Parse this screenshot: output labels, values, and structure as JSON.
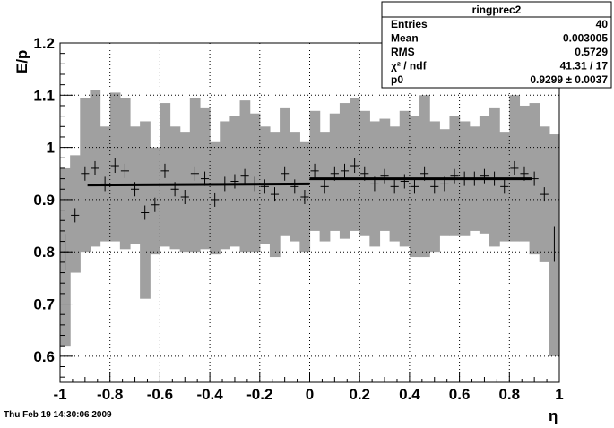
{
  "chart_data": {
    "type": "scatter",
    "title": "",
    "xlabel": "η",
    "ylabel": "E/p",
    "xlim": [
      -1,
      1
    ],
    "ylim": [
      0.55,
      1.2
    ],
    "x_ticks": [
      "-1",
      "-0.8",
      "-0.6",
      "-0.4",
      "-0.2",
      "0",
      "0.2",
      "0.4",
      "0.6",
      "0.8",
      "1"
    ],
    "y_ticks": [
      "0.6",
      "0.7",
      "0.8",
      "0.9",
      "1",
      "1.1",
      "1.2"
    ],
    "grid": true,
    "bin_width": 0.04,
    "points": [
      {
        "x": -0.98,
        "y": 0.8,
        "band_low": 0.62,
        "band_high": 0.96
      },
      {
        "x": -0.94,
        "y": 0.87,
        "band_low": 0.76,
        "band_high": 0.985
      },
      {
        "x": -0.9,
        "y": 0.95,
        "band_low": 0.8,
        "band_high": 1.095
      },
      {
        "x": -0.86,
        "y": 0.96,
        "band_low": 0.81,
        "band_high": 1.11
      },
      {
        "x": -0.82,
        "y": 0.93,
        "band_low": 0.82,
        "band_high": 1.04
      },
      {
        "x": -0.78,
        "y": 0.965,
        "band_low": 0.82,
        "band_high": 1.105
      },
      {
        "x": -0.74,
        "y": 0.955,
        "band_low": 0.805,
        "band_high": 1.095
      },
      {
        "x": -0.7,
        "y": 0.92,
        "band_low": 0.815,
        "band_high": 1.04
      },
      {
        "x": -0.66,
        "y": 0.875,
        "band_low": 0.71,
        "band_high": 1.05
      },
      {
        "x": -0.62,
        "y": 0.89,
        "band_low": 0.795,
        "band_high": 1.0
      },
      {
        "x": -0.58,
        "y": 0.955,
        "band_low": 0.81,
        "band_high": 1.085
      },
      {
        "x": -0.54,
        "y": 0.92,
        "band_low": 0.805,
        "band_high": 1.04
      },
      {
        "x": -0.5,
        "y": 0.905,
        "band_low": 0.8,
        "band_high": 1.03
      },
      {
        "x": -0.46,
        "y": 0.95,
        "band_low": 0.8,
        "band_high": 1.095
      },
      {
        "x": -0.42,
        "y": 0.94,
        "band_low": 0.805,
        "band_high": 1.075
      },
      {
        "x": -0.38,
        "y": 0.9,
        "band_low": 0.795,
        "band_high": 1.01
      },
      {
        "x": -0.34,
        "y": 0.93,
        "band_low": 0.805,
        "band_high": 1.05
      },
      {
        "x": -0.3,
        "y": 0.935,
        "band_low": 0.81,
        "band_high": 1.06
      },
      {
        "x": -0.26,
        "y": 0.945,
        "band_low": 0.8,
        "band_high": 1.09
      },
      {
        "x": -0.22,
        "y": 0.93,
        "band_low": 0.8,
        "band_high": 1.065
      },
      {
        "x": -0.18,
        "y": 0.925,
        "band_low": 0.815,
        "band_high": 1.04
      },
      {
        "x": -0.14,
        "y": 0.91,
        "band_low": 0.79,
        "band_high": 1.03
      },
      {
        "x": -0.1,
        "y": 0.95,
        "band_low": 0.83,
        "band_high": 1.075
      },
      {
        "x": -0.06,
        "y": 0.925,
        "band_low": 0.82,
        "band_high": 1.03
      },
      {
        "x": -0.02,
        "y": 0.905,
        "band_low": 0.8,
        "band_high": 1.01
      },
      {
        "x": 0.02,
        "y": 0.955,
        "band_low": 0.84,
        "band_high": 1.07
      },
      {
        "x": 0.06,
        "y": 0.925,
        "band_low": 0.82,
        "band_high": 1.03
      },
      {
        "x": 0.1,
        "y": 0.95,
        "band_low": 0.84,
        "band_high": 1.065
      },
      {
        "x": 0.14,
        "y": 0.955,
        "band_low": 0.825,
        "band_high": 1.085
      },
      {
        "x": 0.18,
        "y": 0.965,
        "band_low": 0.84,
        "band_high": 1.095
      },
      {
        "x": 0.22,
        "y": 0.95,
        "band_low": 0.83,
        "band_high": 1.07
      },
      {
        "x": 0.26,
        "y": 0.93,
        "band_low": 0.81,
        "band_high": 1.05
      },
      {
        "x": 0.3,
        "y": 0.945,
        "band_low": 0.84,
        "band_high": 1.055
      },
      {
        "x": 0.34,
        "y": 0.925,
        "band_low": 0.82,
        "band_high": 1.04
      },
      {
        "x": 0.38,
        "y": 0.935,
        "band_low": 0.81,
        "band_high": 1.07
      },
      {
        "x": 0.42,
        "y": 0.925,
        "band_low": 0.79,
        "band_high": 1.06
      },
      {
        "x": 0.46,
        "y": 0.95,
        "band_low": 0.79,
        "band_high": 1.1
      },
      {
        "x": 0.5,
        "y": 0.925,
        "band_low": 0.8,
        "band_high": 1.05
      },
      {
        "x": 0.54,
        "y": 0.93,
        "band_low": 0.83,
        "band_high": 1.035
      },
      {
        "x": 0.58,
        "y": 0.945,
        "band_low": 0.83,
        "band_high": 1.06
      },
      {
        "x": 0.62,
        "y": 0.94,
        "band_low": 0.83,
        "band_high": 1.05
      },
      {
        "x": 0.66,
        "y": 0.94,
        "band_low": 0.84,
        "band_high": 1.04
      },
      {
        "x": 0.7,
        "y": 0.945,
        "band_low": 0.835,
        "band_high": 1.06
      },
      {
        "x": 0.74,
        "y": 0.94,
        "band_low": 0.81,
        "band_high": 1.075
      },
      {
        "x": 0.78,
        "y": 0.925,
        "band_low": 0.82,
        "band_high": 1.03
      },
      {
        "x": 0.82,
        "y": 0.96,
        "band_low": 0.82,
        "band_high": 1.1
      },
      {
        "x": 0.86,
        "y": 0.95,
        "band_low": 0.82,
        "band_high": 1.08
      },
      {
        "x": 0.9,
        "y": 0.94,
        "band_low": 0.795,
        "band_high": 1.085
      },
      {
        "x": 0.94,
        "y": 0.91,
        "band_low": 0.78,
        "band_high": 1.04
      },
      {
        "x": 0.98,
        "y": 0.815,
        "band_low": 0.6,
        "band_high": 1.025
      }
    ],
    "fits": [
      {
        "x_start": -0.89,
        "x_end": 0.0,
        "y_start": 0.928,
        "y_end": 0.93
      },
      {
        "x_start": 0.0,
        "x_end": 0.89,
        "y_start": 0.94,
        "y_end": 0.94
      }
    ],
    "colors": {
      "band": "#a0a0a0",
      "marker": "#000000",
      "fit": "#000000",
      "grid": "#000000"
    }
  },
  "stats": {
    "title": "ringprec2",
    "rows": [
      {
        "label": "Entries",
        "value": "40"
      },
      {
        "label": "Mean",
        "value": "0.003005"
      },
      {
        "label": "RMS",
        "value": "0.5729"
      },
      {
        "label": "χ² / ndf",
        "value": "41.31 / 17"
      },
      {
        "label": "p0",
        "value": "0.9299 ± 0.0037"
      }
    ]
  },
  "footer": {
    "timestamp": "Thu Feb 19 14:30:06 2009"
  }
}
